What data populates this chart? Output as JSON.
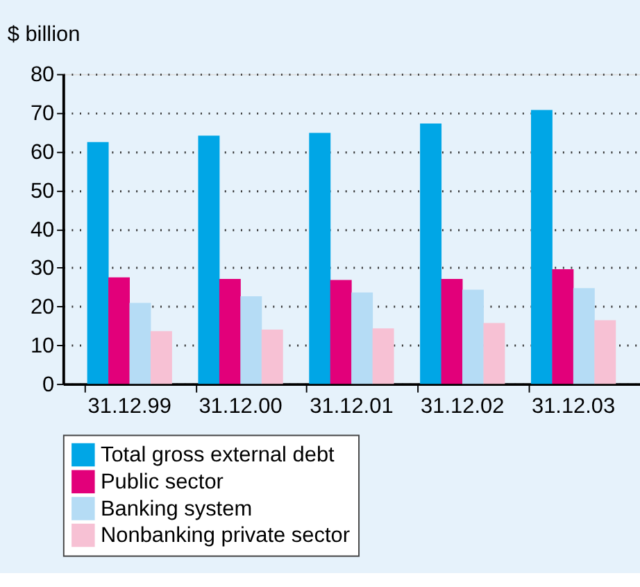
{
  "chart_data": {
    "type": "bar",
    "ylabel": "$ billion",
    "categories": [
      "31.12.99",
      "31.12.00",
      "31.12.01",
      "31.12.02",
      "31.12.03"
    ],
    "series": [
      {
        "name": "Total gross external debt",
        "color": "#00a6e6",
        "values": [
          62.4,
          64.1,
          64.8,
          67.2,
          70.7
        ]
      },
      {
        "name": "Public sector",
        "color": "#e2007a",
        "values": [
          27.5,
          27.1,
          26.8,
          27.1,
          29.6
        ]
      },
      {
        "name": "Banking system",
        "color": "#b5dcf5",
        "values": [
          20.9,
          22.6,
          23.6,
          24.3,
          24.7
        ]
      },
      {
        "name": "Nonbanking private sector",
        "color": "#f7c1d4",
        "values": [
          13.6,
          14.0,
          14.3,
          15.7,
          16.4
        ]
      }
    ],
    "ylim": [
      0,
      80
    ],
    "yticks": [
      0,
      10,
      20,
      30,
      40,
      50,
      60,
      70,
      80
    ],
    "grid": "y",
    "legend": "bottom"
  }
}
